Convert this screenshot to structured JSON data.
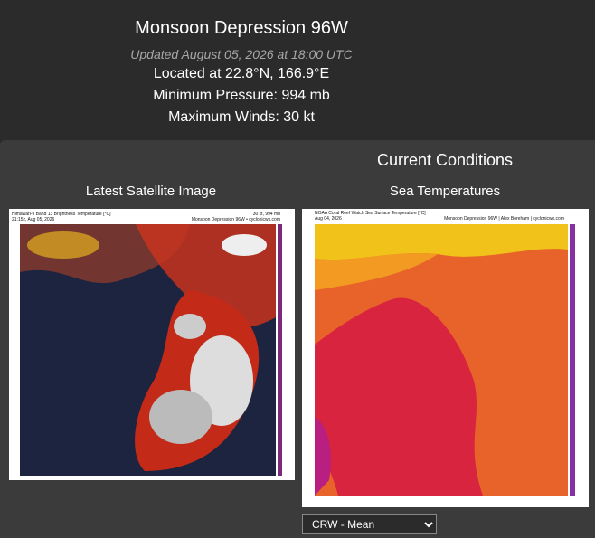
{
  "header": {
    "title": "Monsoon Depression 96W",
    "updated": "Updated August 05, 2026 at 18:00 UTC",
    "location": "Located at 22.8°N, 166.9°E",
    "pressure": "Minimum Pressure: 994 mb",
    "winds": "Maximum Winds: 30 kt"
  },
  "current_conditions": {
    "heading": "Current Conditions",
    "satellite": {
      "heading": "Latest Satellite Image",
      "caption_left": [
        "Himawari-9 Band 13 Brightness Temperature [°C]",
        "21:15z, Aug 05, 2026"
      ],
      "caption_right": [
        "30 kt, 994 mb",
        "Monsoon Depression 96W • cyclonicwx.com"
      ]
    },
    "sst": {
      "heading": "Sea Temperatures",
      "caption_left": [
        "NOAA Coral Reef Watch Sea Surface Temperature [°C]",
        "Aug 04, 2026"
      ],
      "caption_right": [
        "Monsoon Depression 96W | Alex Boreham | cyclonicwx.com"
      ],
      "dropdown": "CRW - Mean"
    }
  }
}
